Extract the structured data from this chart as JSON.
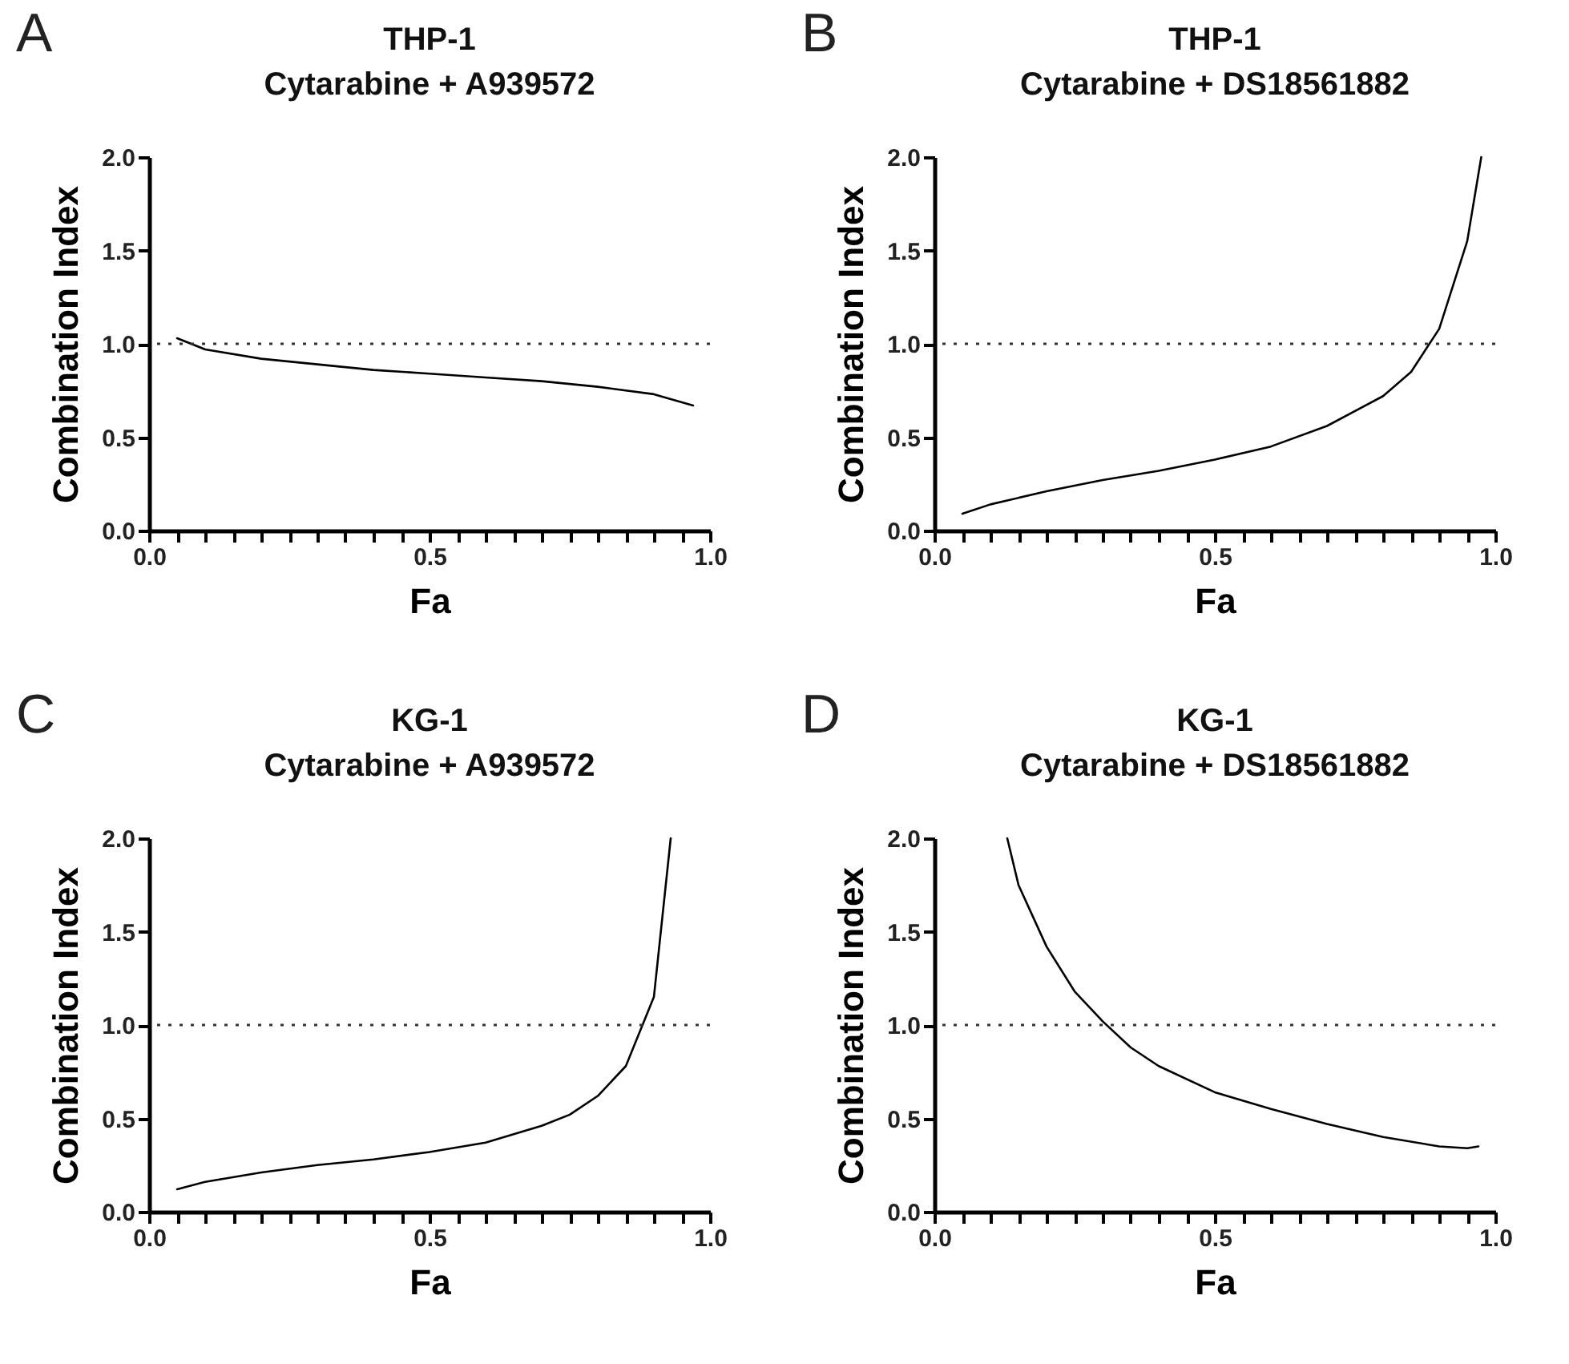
{
  "chart_data": [
    {
      "type": "line",
      "title": "THP-1",
      "subtitle": "Cytarabine + A939572",
      "xlabel": "Fa",
      "ylabel": "Combination Index",
      "annotations": [
        "A"
      ],
      "xlim": [
        0,
        1
      ],
      "ylim": [
        0,
        2
      ],
      "xticks": [
        {
          "value": 0,
          "label": "0.0"
        },
        {
          "value": 0.05,
          "label": null
        },
        {
          "value": 0.1,
          "label": null
        },
        {
          "value": 0.15,
          "label": null
        },
        {
          "value": 0.2,
          "label": null
        },
        {
          "value": 0.25,
          "label": null
        },
        {
          "value": 0.3,
          "label": null
        },
        {
          "value": 0.35,
          "label": null
        },
        {
          "value": 0.4,
          "label": null
        },
        {
          "value": 0.45,
          "label": null
        },
        {
          "value": 0.5,
          "label": "0.5"
        },
        {
          "value": 0.55,
          "label": null
        },
        {
          "value": 0.6,
          "label": null
        },
        {
          "value": 0.65,
          "label": null
        },
        {
          "value": 0.7,
          "label": null
        },
        {
          "value": 0.75,
          "label": null
        },
        {
          "value": 0.8,
          "label": null
        },
        {
          "value": 0.85,
          "label": null
        },
        {
          "value": 0.9,
          "label": null
        },
        {
          "value": 0.95,
          "label": null
        },
        {
          "value": 1,
          "label": "1.0"
        }
      ],
      "yticks": [
        {
          "value": 0,
          "label": "0.0"
        },
        {
          "value": 0.5,
          "label": "0.5"
        },
        {
          "value": 1,
          "label": "1.0"
        },
        {
          "value": 1.5,
          "label": "1.5"
        },
        {
          "value": 2,
          "label": "2.0"
        }
      ],
      "grid": false,
      "marker": "none",
      "line_style": "solid",
      "ref_lines": [
        {
          "axis": "y",
          "value": 1,
          "line_style": "dotted"
        }
      ],
      "series": [
        {
          "color": "#000000",
          "x": [
            0.05,
            0.1,
            0.2,
            0.3,
            0.4,
            0.5,
            0.6,
            0.7,
            0.8,
            0.9,
            0.97
          ],
          "values": [
            1.03,
            0.97,
            0.92,
            0.89,
            0.86,
            0.84,
            0.82,
            0.8,
            0.77,
            0.73,
            0.67
          ]
        }
      ]
    },
    {
      "type": "line",
      "title": "THP-1",
      "subtitle": "Cytarabine + DS18561882",
      "xlabel": "Fa",
      "ylabel": "Combination Index",
      "annotations": [
        "B"
      ],
      "xlim": [
        0,
        1
      ],
      "ylim": [
        0,
        2
      ],
      "xticks": [
        {
          "value": 0,
          "label": "0.0"
        },
        {
          "value": 0.05,
          "label": null
        },
        {
          "value": 0.1,
          "label": null
        },
        {
          "value": 0.15,
          "label": null
        },
        {
          "value": 0.2,
          "label": null
        },
        {
          "value": 0.25,
          "label": null
        },
        {
          "value": 0.3,
          "label": null
        },
        {
          "value": 0.35,
          "label": null
        },
        {
          "value": 0.4,
          "label": null
        },
        {
          "value": 0.45,
          "label": null
        },
        {
          "value": 0.5,
          "label": "0.5"
        },
        {
          "value": 0.55,
          "label": null
        },
        {
          "value": 0.6,
          "label": null
        },
        {
          "value": 0.65,
          "label": null
        },
        {
          "value": 0.7,
          "label": null
        },
        {
          "value": 0.75,
          "label": null
        },
        {
          "value": 0.8,
          "label": null
        },
        {
          "value": 0.85,
          "label": null
        },
        {
          "value": 0.9,
          "label": null
        },
        {
          "value": 0.95,
          "label": null
        },
        {
          "value": 1,
          "label": "1.0"
        }
      ],
      "yticks": [
        {
          "value": 0,
          "label": "0.0"
        },
        {
          "value": 0.5,
          "label": "0.5"
        },
        {
          "value": 1,
          "label": "1.0"
        },
        {
          "value": 1.5,
          "label": "1.5"
        },
        {
          "value": 2,
          "label": "2.0"
        }
      ],
      "grid": false,
      "marker": "none",
      "line_style": "solid",
      "ref_lines": [
        {
          "axis": "y",
          "value": 1,
          "line_style": "dotted"
        }
      ],
      "series": [
        {
          "color": "#000000",
          "x": [
            0.05,
            0.1,
            0.2,
            0.3,
            0.4,
            0.5,
            0.6,
            0.7,
            0.8,
            0.85,
            0.9,
            0.95,
            0.975
          ],
          "values": [
            0.09,
            0.14,
            0.21,
            0.27,
            0.32,
            0.38,
            0.45,
            0.56,
            0.72,
            0.85,
            1.08,
            1.55,
            2.0
          ]
        }
      ]
    },
    {
      "type": "line",
      "title": "KG-1",
      "subtitle": "Cytarabine + A939572",
      "xlabel": "Fa",
      "ylabel": "Combination Index",
      "annotations": [
        "C"
      ],
      "xlim": [
        0,
        1
      ],
      "ylim": [
        0,
        2
      ],
      "xticks": [
        {
          "value": 0,
          "label": "0.0"
        },
        {
          "value": 0.05,
          "label": null
        },
        {
          "value": 0.1,
          "label": null
        },
        {
          "value": 0.15,
          "label": null
        },
        {
          "value": 0.2,
          "label": null
        },
        {
          "value": 0.25,
          "label": null
        },
        {
          "value": 0.3,
          "label": null
        },
        {
          "value": 0.35,
          "label": null
        },
        {
          "value": 0.4,
          "label": null
        },
        {
          "value": 0.45,
          "label": null
        },
        {
          "value": 0.5,
          "label": "0.5"
        },
        {
          "value": 0.55,
          "label": null
        },
        {
          "value": 0.6,
          "label": null
        },
        {
          "value": 0.65,
          "label": null
        },
        {
          "value": 0.7,
          "label": null
        },
        {
          "value": 0.75,
          "label": null
        },
        {
          "value": 0.8,
          "label": null
        },
        {
          "value": 0.85,
          "label": null
        },
        {
          "value": 0.9,
          "label": null
        },
        {
          "value": 0.95,
          "label": null
        },
        {
          "value": 1,
          "label": "1.0"
        }
      ],
      "yticks": [
        {
          "value": 0,
          "label": "0.0"
        },
        {
          "value": 0.5,
          "label": "0.5"
        },
        {
          "value": 1,
          "label": "1.0"
        },
        {
          "value": 1.5,
          "label": "1.5"
        },
        {
          "value": 2,
          "label": "2.0"
        }
      ],
      "grid": false,
      "marker": "none",
      "line_style": "solid",
      "ref_lines": [
        {
          "axis": "y",
          "value": 1,
          "line_style": "dotted"
        }
      ],
      "series": [
        {
          "color": "#000000",
          "x": [
            0.05,
            0.1,
            0.2,
            0.3,
            0.4,
            0.5,
            0.6,
            0.7,
            0.75,
            0.8,
            0.85,
            0.9,
            0.93
          ],
          "values": [
            0.12,
            0.16,
            0.21,
            0.25,
            0.28,
            0.32,
            0.37,
            0.46,
            0.52,
            0.62,
            0.78,
            1.15,
            2.0
          ]
        }
      ]
    },
    {
      "type": "line",
      "title": "KG-1",
      "subtitle": "Cytarabine + DS18561882",
      "xlabel": "Fa",
      "ylabel": "Combination Index",
      "annotations": [
        "D"
      ],
      "xlim": [
        0,
        1
      ],
      "ylim": [
        0,
        2
      ],
      "xticks": [
        {
          "value": 0,
          "label": "0.0"
        },
        {
          "value": 0.05,
          "label": null
        },
        {
          "value": 0.1,
          "label": null
        },
        {
          "value": 0.15,
          "label": null
        },
        {
          "value": 0.2,
          "label": null
        },
        {
          "value": 0.25,
          "label": null
        },
        {
          "value": 0.3,
          "label": null
        },
        {
          "value": 0.35,
          "label": null
        },
        {
          "value": 0.4,
          "label": null
        },
        {
          "value": 0.45,
          "label": null
        },
        {
          "value": 0.5,
          "label": "0.5"
        },
        {
          "value": 0.55,
          "label": null
        },
        {
          "value": 0.6,
          "label": null
        },
        {
          "value": 0.65,
          "label": null
        },
        {
          "value": 0.7,
          "label": null
        },
        {
          "value": 0.75,
          "label": null
        },
        {
          "value": 0.8,
          "label": null
        },
        {
          "value": 0.85,
          "label": null
        },
        {
          "value": 0.9,
          "label": null
        },
        {
          "value": 0.95,
          "label": null
        },
        {
          "value": 1,
          "label": "1.0"
        }
      ],
      "yticks": [
        {
          "value": 0,
          "label": "0.0"
        },
        {
          "value": 0.5,
          "label": "0.5"
        },
        {
          "value": 1,
          "label": "1.0"
        },
        {
          "value": 1.5,
          "label": "1.5"
        },
        {
          "value": 2,
          "label": "2.0"
        }
      ],
      "grid": false,
      "marker": "none",
      "line_style": "solid",
      "ref_lines": [
        {
          "axis": "y",
          "value": 1,
          "line_style": "dotted"
        }
      ],
      "series": [
        {
          "color": "#000000",
          "x": [
            0.13,
            0.15,
            0.2,
            0.25,
            0.3,
            0.35,
            0.4,
            0.5,
            0.6,
            0.7,
            0.8,
            0.9,
            0.95,
            0.97
          ],
          "values": [
            2.0,
            1.75,
            1.42,
            1.18,
            1.02,
            0.88,
            0.78,
            0.64,
            0.55,
            0.47,
            0.4,
            0.35,
            0.34,
            0.35
          ]
        }
      ]
    }
  ]
}
